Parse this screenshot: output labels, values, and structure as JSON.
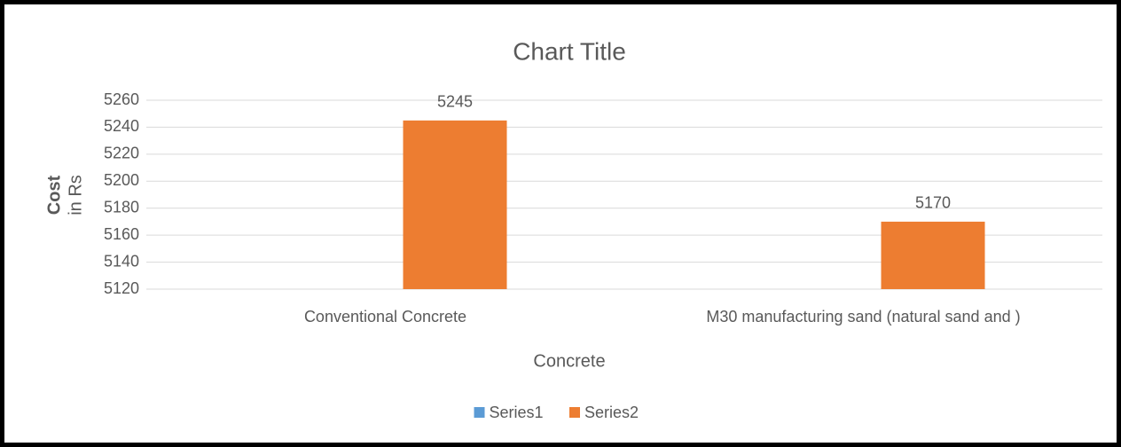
{
  "chart_data": {
    "type": "bar",
    "title": "Chart Title",
    "xlabel": "Concrete",
    "ylabel": "Cost",
    "ylabel_unit": "in Rs",
    "categories": [
      "Conventional Concrete",
      "M30 manufacturing sand (natural sand and )"
    ],
    "series": [
      {
        "name": "Series1",
        "color": "#5b9bd5",
        "values": [
          null,
          null
        ]
      },
      {
        "name": "Series2",
        "color": "#ed7d31",
        "values": [
          5245,
          5170
        ]
      }
    ],
    "ylim": [
      5120,
      5260
    ],
    "yticks": [
      5120,
      5140,
      5160,
      5180,
      5200,
      5220,
      5240,
      5260
    ],
    "grid": true,
    "data_labels": true,
    "legend": "bottom"
  }
}
